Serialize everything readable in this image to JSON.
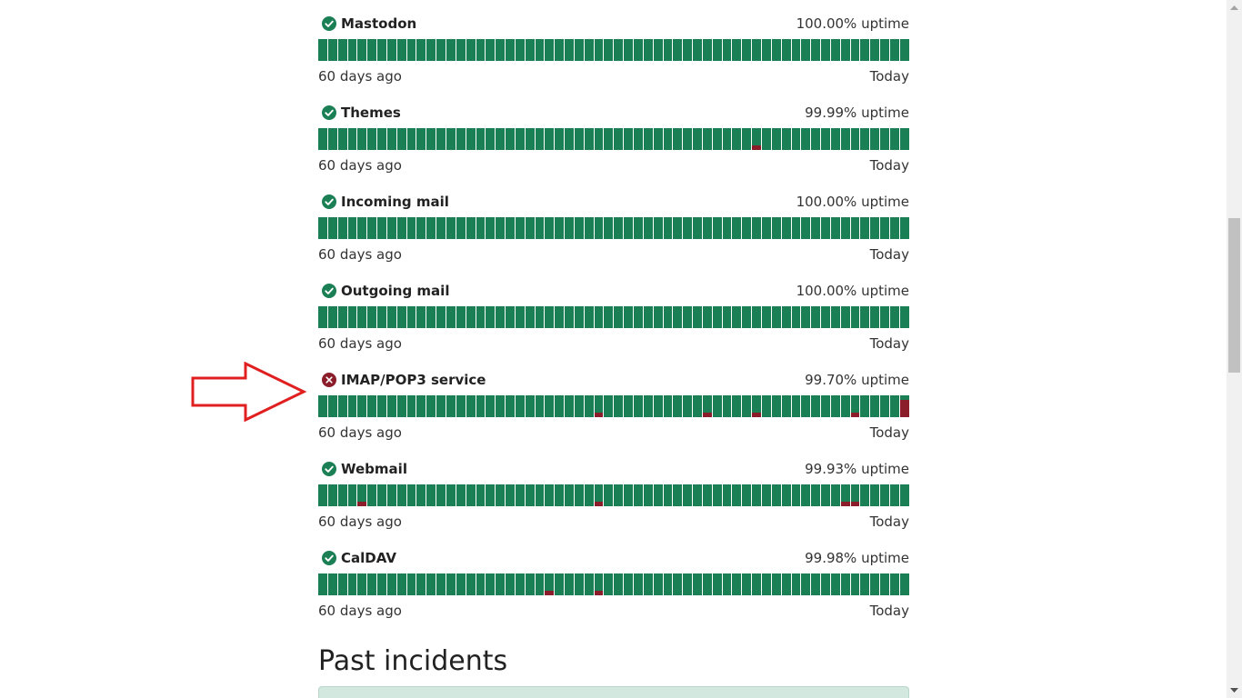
{
  "services": [
    {
      "name": "Mastodon",
      "uptime": "100.00% uptime",
      "status": "operational",
      "status_icon": "check-circle-icon",
      "history_left": "60 days ago",
      "history_right": "Today",
      "incident_days": []
    },
    {
      "name": "Themes",
      "uptime": "99.99% uptime",
      "status": "operational",
      "status_icon": "check-circle-icon",
      "history_left": "60 days ago",
      "history_right": "Today",
      "incident_days": [
        {
          "day": 44,
          "severity": 0.2
        }
      ]
    },
    {
      "name": "Incoming mail",
      "uptime": "100.00% uptime",
      "status": "operational",
      "status_icon": "check-circle-icon",
      "history_left": "60 days ago",
      "history_right": "Today",
      "incident_days": []
    },
    {
      "name": "Outgoing mail",
      "uptime": "100.00% uptime",
      "status": "operational",
      "status_icon": "check-circle-icon",
      "history_left": "60 days ago",
      "history_right": "Today",
      "incident_days": []
    },
    {
      "name": "IMAP/POP3 service",
      "uptime": "99.70% uptime",
      "status": "outage",
      "status_icon": "x-circle-icon",
      "history_left": "60 days ago",
      "history_right": "Today",
      "incident_days": [
        {
          "day": 28,
          "severity": 0.2
        },
        {
          "day": 39,
          "severity": 0.2
        },
        {
          "day": 44,
          "severity": 0.2
        },
        {
          "day": 54,
          "severity": 0.2
        },
        {
          "day": 59,
          "severity": 0.8
        }
      ]
    },
    {
      "name": "Webmail",
      "uptime": "99.93% uptime",
      "status": "operational",
      "status_icon": "check-circle-icon",
      "history_left": "60 days ago",
      "history_right": "Today",
      "incident_days": [
        {
          "day": 4,
          "severity": 0.2
        },
        {
          "day": 28,
          "severity": 0.2
        },
        {
          "day": 53,
          "severity": 0.2
        },
        {
          "day": 54,
          "severity": 0.2
        }
      ]
    },
    {
      "name": "CalDAV",
      "uptime": "99.98% uptime",
      "status": "operational",
      "status_icon": "check-circle-icon",
      "history_left": "60 days ago",
      "history_right": "Today",
      "incident_days": [
        {
          "day": 23,
          "severity": 0.2
        },
        {
          "day": 28,
          "severity": 0.2
        }
      ]
    }
  ],
  "days_shown": 60,
  "past_incidents_title": "Past incidents",
  "colors": {
    "operational": "#1b7f55",
    "outage": "#8b1c2a",
    "annotation_arrow": "#e02020",
    "incident_box": "#d3e8df"
  }
}
